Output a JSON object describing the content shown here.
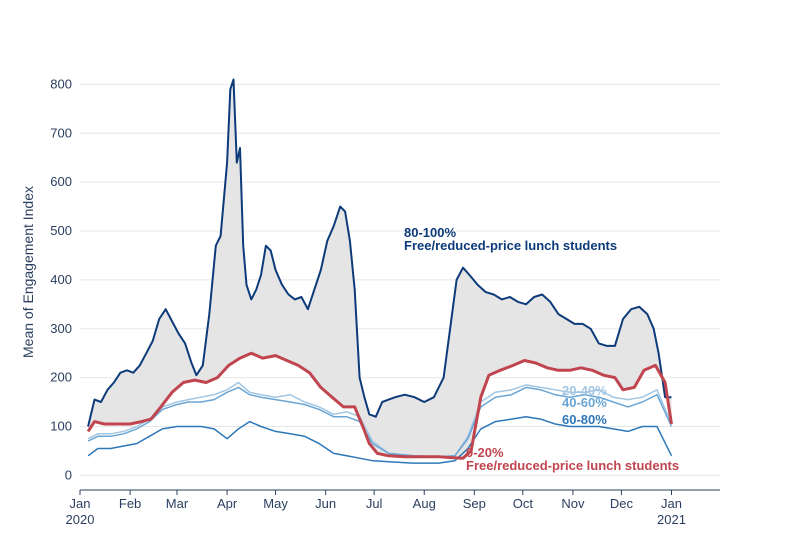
{
  "chart_data": {
    "type": "line",
    "title": "",
    "xlabel": "",
    "ylabel": "Mean of Engagement Index",
    "xlim": [
      "2020-01-01",
      "2021-01-31"
    ],
    "ylim": [
      -30,
      850
    ],
    "grid": true,
    "legend": "none",
    "x_ticks": [
      {
        "date": "2020-01-01",
        "line1": "Jan",
        "line2": "2020"
      },
      {
        "date": "2020-02-01",
        "line1": "Feb",
        "line2": ""
      },
      {
        "date": "2020-03-01",
        "line1": "Mar",
        "line2": ""
      },
      {
        "date": "2020-04-01",
        "line1": "Apr",
        "line2": ""
      },
      {
        "date": "2020-05-01",
        "line1": "May",
        "line2": ""
      },
      {
        "date": "2020-06-01",
        "line1": "Jun",
        "line2": ""
      },
      {
        "date": "2020-07-01",
        "line1": "Jul",
        "line2": ""
      },
      {
        "date": "2020-08-01",
        "line1": "Aug",
        "line2": ""
      },
      {
        "date": "2020-09-01",
        "line1": "Sep",
        "line2": ""
      },
      {
        "date": "2020-10-01",
        "line1": "Oct",
        "line2": ""
      },
      {
        "date": "2020-11-01",
        "line1": "Nov",
        "line2": ""
      },
      {
        "date": "2020-12-01",
        "line1": "Dec",
        "line2": ""
      },
      {
        "date": "2021-01-01",
        "line1": "Jan",
        "line2": "2021"
      }
    ],
    "y_ticks": [
      0,
      100,
      200,
      300,
      400,
      500,
      600,
      700,
      800
    ],
    "fill_between": {
      "upper": "80-100%",
      "lower": "0-20%",
      "color": "#e5e5e5"
    },
    "series": [
      {
        "name": "80-100%",
        "color": "#0d3b7a",
        "width": 2,
        "x": [
          "2020-01-06",
          "2020-01-10",
          "2020-01-14",
          "2020-01-18",
          "2020-01-22",
          "2020-01-26",
          "2020-01-30",
          "2020-02-03",
          "2020-02-07",
          "2020-02-11",
          "2020-02-15",
          "2020-02-19",
          "2020-02-23",
          "2020-02-27",
          "2020-03-02",
          "2020-03-06",
          "2020-03-10",
          "2020-03-13",
          "2020-03-17",
          "2020-03-21",
          "2020-03-25",
          "2020-03-28",
          "2020-04-01",
          "2020-04-03",
          "2020-04-05",
          "2020-04-07",
          "2020-04-09",
          "2020-04-11",
          "2020-04-13",
          "2020-04-16",
          "2020-04-19",
          "2020-04-22",
          "2020-04-25",
          "2020-04-28",
          "2020-05-01",
          "2020-05-05",
          "2020-05-09",
          "2020-05-13",
          "2020-05-17",
          "2020-05-21",
          "2020-05-25",
          "2020-05-29",
          "2020-06-02",
          "2020-06-06",
          "2020-06-10",
          "2020-06-13",
          "2020-06-16",
          "2020-06-19",
          "2020-06-22",
          "2020-06-25",
          "2020-06-28",
          "2020-07-02",
          "2020-07-06",
          "2020-07-10",
          "2020-07-14",
          "2020-07-20",
          "2020-07-26",
          "2020-08-01",
          "2020-08-07",
          "2020-08-13",
          "2020-08-17",
          "2020-08-21",
          "2020-08-25",
          "2020-08-29",
          "2020-09-03",
          "2020-09-08",
          "2020-09-13",
          "2020-09-18",
          "2020-09-23",
          "2020-09-28",
          "2020-10-03",
          "2020-10-08",
          "2020-10-13",
          "2020-10-18",
          "2020-10-23",
          "2020-10-28",
          "2020-11-02",
          "2020-11-07",
          "2020-11-12",
          "2020-11-17",
          "2020-11-22",
          "2020-11-27",
          "2020-12-02",
          "2020-12-07",
          "2020-12-12",
          "2020-12-17",
          "2020-12-21",
          "2020-12-24",
          "2020-12-28",
          "2021-01-01"
        ],
        "values": [
          100,
          155,
          150,
          175,
          190,
          210,
          215,
          210,
          225,
          250,
          275,
          320,
          340,
          315,
          290,
          270,
          230,
          205,
          225,
          330,
          470,
          490,
          640,
          790,
          810,
          640,
          670,
          470,
          390,
          360,
          380,
          410,
          470,
          460,
          420,
          390,
          370,
          360,
          365,
          340,
          380,
          420,
          480,
          510,
          550,
          540,
          480,
          380,
          200,
          160,
          125,
          120,
          150,
          155,
          160,
          165,
          160,
          150,
          160,
          200,
          300,
          400,
          425,
          410,
          390,
          375,
          370,
          360,
          365,
          355,
          350,
          365,
          370,
          355,
          330,
          320,
          310,
          310,
          300,
          270,
          265,
          265,
          320,
          340,
          345,
          330,
          300,
          250,
          160,
          160
        ]
      },
      {
        "name": "20-40%",
        "color": "#a3c6e2",
        "width": 1.5,
        "x": [
          "2020-01-06",
          "2020-01-12",
          "2020-01-20",
          "2020-01-28",
          "2020-02-05",
          "2020-02-13",
          "2020-02-21",
          "2020-03-01",
          "2020-03-08",
          "2020-03-16",
          "2020-03-24",
          "2020-04-01",
          "2020-04-08",
          "2020-04-15",
          "2020-04-22",
          "2020-05-01",
          "2020-05-10",
          "2020-05-19",
          "2020-05-28",
          "2020-06-06",
          "2020-06-14",
          "2020-06-22",
          "2020-06-30",
          "2020-07-10",
          "2020-07-25",
          "2020-08-10",
          "2020-08-20",
          "2020-08-28",
          "2020-09-05",
          "2020-09-14",
          "2020-09-24",
          "2020-10-03",
          "2020-10-12",
          "2020-10-21",
          "2020-10-30",
          "2020-11-08",
          "2020-11-17",
          "2020-11-26",
          "2020-12-05",
          "2020-12-14",
          "2020-12-23",
          "2021-01-01"
        ],
        "values": [
          75,
          85,
          85,
          90,
          100,
          115,
          140,
          150,
          155,
          160,
          165,
          175,
          190,
          170,
          165,
          160,
          165,
          150,
          140,
          125,
          130,
          120,
          70,
          45,
          40,
          38,
          40,
          80,
          150,
          170,
          175,
          185,
          180,
          175,
          170,
          170,
          175,
          160,
          155,
          160,
          175,
          105
        ]
      },
      {
        "name": "40-60%",
        "color": "#6aa5d4",
        "width": 1.5,
        "x": [
          "2020-01-06",
          "2020-01-12",
          "2020-01-20",
          "2020-01-28",
          "2020-02-05",
          "2020-02-13",
          "2020-02-21",
          "2020-03-01",
          "2020-03-08",
          "2020-03-16",
          "2020-03-24",
          "2020-04-01",
          "2020-04-08",
          "2020-04-15",
          "2020-04-22",
          "2020-05-01",
          "2020-05-10",
          "2020-05-19",
          "2020-05-28",
          "2020-06-06",
          "2020-06-14",
          "2020-06-22",
          "2020-06-30",
          "2020-07-10",
          "2020-07-25",
          "2020-08-10",
          "2020-08-20",
          "2020-08-28",
          "2020-09-05",
          "2020-09-14",
          "2020-09-24",
          "2020-10-03",
          "2020-10-12",
          "2020-10-21",
          "2020-10-30",
          "2020-11-08",
          "2020-11-17",
          "2020-11-26",
          "2020-12-05",
          "2020-12-14",
          "2020-12-23",
          "2021-01-01"
        ],
        "values": [
          70,
          80,
          80,
          85,
          95,
          110,
          135,
          145,
          150,
          150,
          155,
          170,
          180,
          165,
          160,
          155,
          150,
          145,
          135,
          120,
          120,
          110,
          65,
          45,
          40,
          38,
          40,
          75,
          140,
          160,
          165,
          180,
          175,
          165,
          160,
          165,
          160,
          150,
          140,
          150,
          165,
          100
        ]
      },
      {
        "name": "60-80%",
        "color": "#2e77b8",
        "width": 1.5,
        "x": [
          "2020-01-06",
          "2020-01-12",
          "2020-01-20",
          "2020-01-28",
          "2020-02-05",
          "2020-02-13",
          "2020-02-21",
          "2020-03-01",
          "2020-03-08",
          "2020-03-16",
          "2020-03-24",
          "2020-04-01",
          "2020-04-08",
          "2020-04-15",
          "2020-04-22",
          "2020-05-01",
          "2020-05-10",
          "2020-05-19",
          "2020-05-28",
          "2020-06-06",
          "2020-06-14",
          "2020-06-22",
          "2020-06-30",
          "2020-07-10",
          "2020-07-25",
          "2020-08-10",
          "2020-08-20",
          "2020-08-28",
          "2020-09-05",
          "2020-09-14",
          "2020-09-24",
          "2020-10-03",
          "2020-10-12",
          "2020-10-21",
          "2020-10-30",
          "2020-11-08",
          "2020-11-17",
          "2020-11-26",
          "2020-12-05",
          "2020-12-14",
          "2020-12-23",
          "2021-01-01"
        ],
        "values": [
          40,
          55,
          55,
          60,
          65,
          80,
          95,
          100,
          100,
          100,
          95,
          75,
          95,
          110,
          100,
          90,
          85,
          80,
          65,
          45,
          40,
          35,
          30,
          28,
          25,
          25,
          30,
          55,
          95,
          110,
          115,
          120,
          115,
          105,
          100,
          100,
          100,
          95,
          90,
          100,
          100,
          40
        ]
      },
      {
        "name": "0-20%",
        "color": "#c0454f",
        "width": 3,
        "x": [
          "2020-01-06",
          "2020-01-10",
          "2020-01-16",
          "2020-01-24",
          "2020-02-01",
          "2020-02-08",
          "2020-02-14",
          "2020-02-20",
          "2020-02-27",
          "2020-03-05",
          "2020-03-12",
          "2020-03-19",
          "2020-03-26",
          "2020-04-02",
          "2020-04-09",
          "2020-04-16",
          "2020-04-23",
          "2020-05-01",
          "2020-05-08",
          "2020-05-15",
          "2020-05-22",
          "2020-05-29",
          "2020-06-05",
          "2020-06-12",
          "2020-06-19",
          "2020-06-24",
          "2020-06-28",
          "2020-07-03",
          "2020-07-10",
          "2020-07-20",
          "2020-08-01",
          "2020-08-10",
          "2020-08-19",
          "2020-08-25",
          "2020-08-30",
          "2020-09-05",
          "2020-09-10",
          "2020-09-17",
          "2020-09-25",
          "2020-10-02",
          "2020-10-09",
          "2020-10-16",
          "2020-10-23",
          "2020-10-30",
          "2020-11-06",
          "2020-11-13",
          "2020-11-20",
          "2020-11-27",
          "2020-12-02",
          "2020-12-09",
          "2020-12-15",
          "2020-12-22",
          "2020-12-28",
          "2021-01-01"
        ],
        "values": [
          90,
          110,
          105,
          105,
          105,
          110,
          115,
          140,
          170,
          190,
          195,
          190,
          200,
          225,
          240,
          250,
          240,
          245,
          235,
          225,
          210,
          180,
          160,
          140,
          140,
          100,
          65,
          45,
          40,
          38,
          38,
          38,
          36,
          35,
          50,
          160,
          205,
          215,
          225,
          235,
          230,
          220,
          215,
          215,
          220,
          215,
          205,
          200,
          175,
          180,
          215,
          225,
          190,
          105
        ]
      }
    ],
    "annotations": [
      {
        "line1": "80-100%",
        "line2": "Free/reduced-price lunch students",
        "color": "#0d3b7a"
      },
      {
        "line1": "20-40%",
        "line2": "",
        "color": "#a3c6e2"
      },
      {
        "line1": "40-60%",
        "line2": "",
        "color": "#6aa5d4"
      },
      {
        "line1": "60-80%",
        "line2": "",
        "color": "#2e77b8"
      },
      {
        "line1": "0-20%",
        "line2": "Free/reduced-price lunch students",
        "color": "#c0454f"
      }
    ]
  }
}
